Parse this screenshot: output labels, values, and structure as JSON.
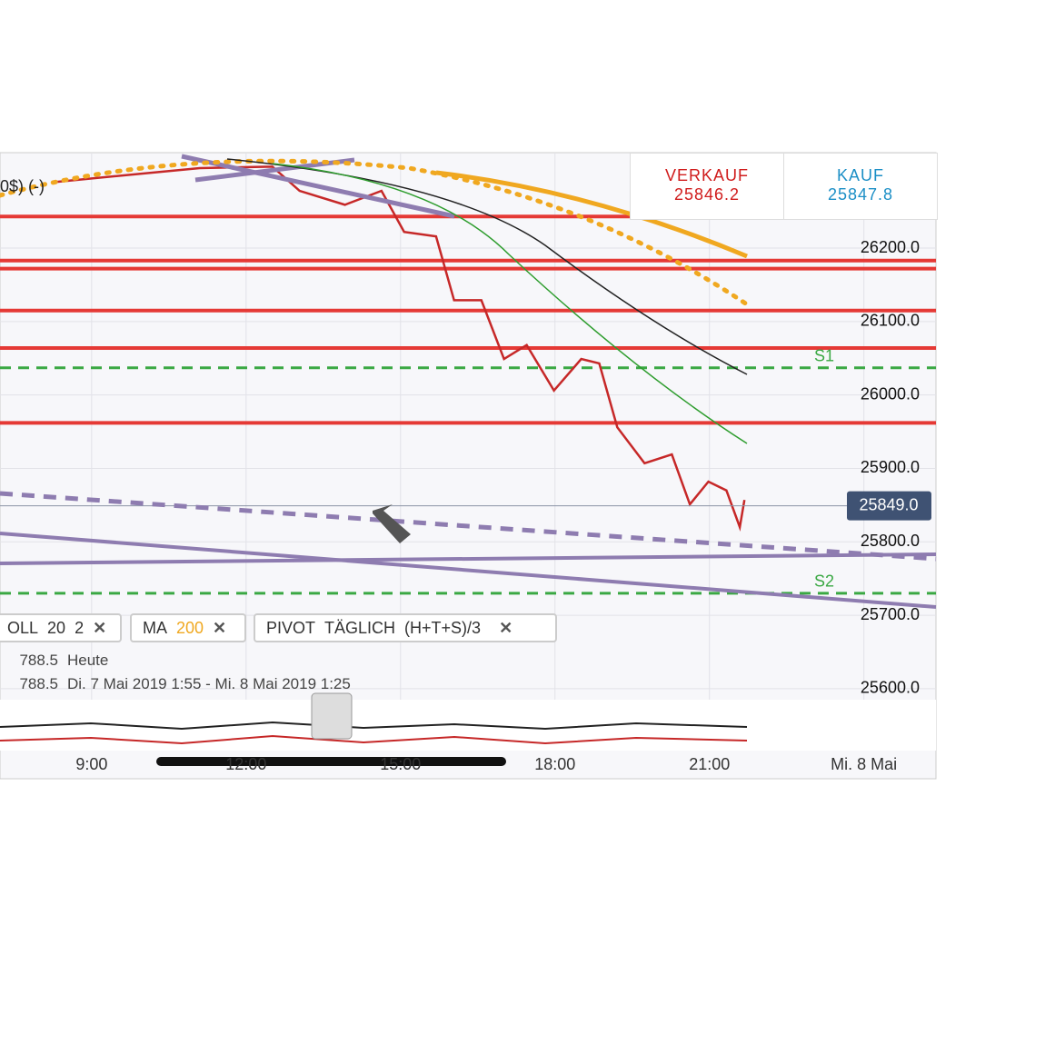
{
  "header": {
    "sell_label": "VERKAUF",
    "sell_price": "25846.2",
    "buy_label": "KAUF",
    "buy_price": "25847.8"
  },
  "instrument_label": "0$) (-)",
  "chart_data": {
    "type": "line",
    "x": [
      8.28,
      11.1,
      12.51,
      13.04,
      13.92,
      14.63,
      15.07,
      15.69,
      16.04,
      16.57,
      17.01,
      17.45,
      17.98,
      18.51,
      18.86,
      19.21,
      19.74,
      20.27,
      20.62,
      20.98,
      21.33,
      21.59,
      21.68
    ],
    "series": [
      {
        "color": "#c62828",
        "values": [
          26290,
          26309,
          26311,
          26278,
          26259,
          26278,
          26222,
          26216,
          26129,
          26129,
          26049,
          26068,
          26006,
          26049,
          26043,
          25956,
          25907,
          25919,
          25851,
          25882,
          25870,
          25820,
          25857
        ]
      }
    ],
    "xlim": [
      7.22,
      25.4
    ],
    "xticks": [
      {
        "value": 9,
        "label": "9:00"
      },
      {
        "value": 12,
        "label": "12:00"
      },
      {
        "value": 15,
        "label": "15:00"
      },
      {
        "value": 18,
        "label": "18:00"
      },
      {
        "value": 21,
        "label": "21:00"
      },
      {
        "value": 24,
        "label": "Mi. 8 Mai"
      }
    ],
    "ylim": [
      25585,
      26330
    ],
    "yticks": [
      {
        "value": 26200,
        "label": "26200.0"
      },
      {
        "value": 26100,
        "label": "26100.0"
      },
      {
        "value": 26000,
        "label": "26000.0"
      },
      {
        "value": 25900,
        "label": "25900.0"
      },
      {
        "value": 25800,
        "label": "25800.0"
      },
      {
        "value": 25700,
        "label": "25700.0"
      },
      {
        "value": 25600,
        "label": "25600.0"
      }
    ],
    "grid": true,
    "current_price": {
      "value": 25849,
      "label": "25849.0"
    },
    "resistance_levels": [
      26243,
      26183,
      26172,
      26115,
      26064,
      25962
    ],
    "level_color": "#e53935",
    "pivots": [
      {
        "name": "S1",
        "value": 26037
      },
      {
        "name": "S2",
        "value": 25730
      }
    ],
    "pivot_color": "#3aa843"
  },
  "indicators": [
    {
      "name": "OLL",
      "params": [
        "20",
        "2"
      ],
      "close": "✕"
    },
    {
      "name": "MA",
      "params": [
        "200"
      ],
      "close": "✕"
    },
    {
      "name": "PIVOT",
      "params": [
        "TÄGLICH",
        "(H+T+S)/3"
      ],
      "close": "✕"
    }
  ],
  "info_rows": [
    {
      "value": "788.5",
      "text": "Heute"
    },
    {
      "value": "788.5",
      "text": "Di. 7 Mai 2019 1:55 - Mi. 8 Mai 2019 1:25"
    }
  ]
}
